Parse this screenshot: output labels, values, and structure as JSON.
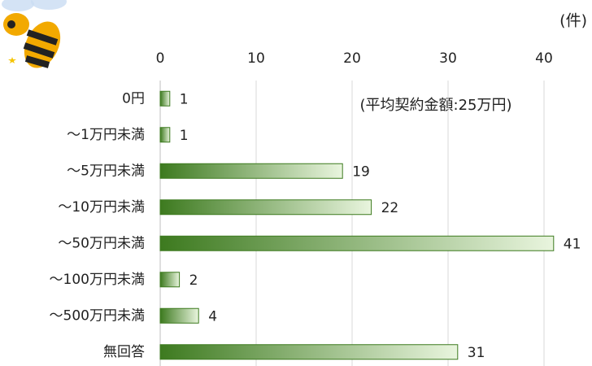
{
  "chart_data": {
    "type": "bar",
    "orientation": "horizontal",
    "unit_label": "(件)",
    "annotation": "(平均契約金額:25万円)",
    "categories": [
      "0円",
      "～1万円未満",
      "～5万円未満",
      "～10万円未満",
      "～50万円未満",
      "～100万円未満",
      "～500万円未満",
      "無回答"
    ],
    "values": [
      1,
      1,
      19,
      22,
      41,
      2,
      4,
      31
    ],
    "colors": [
      "#3d7a1f",
      "#e9f5de"
    ],
    "xlim": [
      0,
      45
    ],
    "xticks": [
      0,
      10,
      20,
      30,
      40
    ],
    "grid": true
  }
}
